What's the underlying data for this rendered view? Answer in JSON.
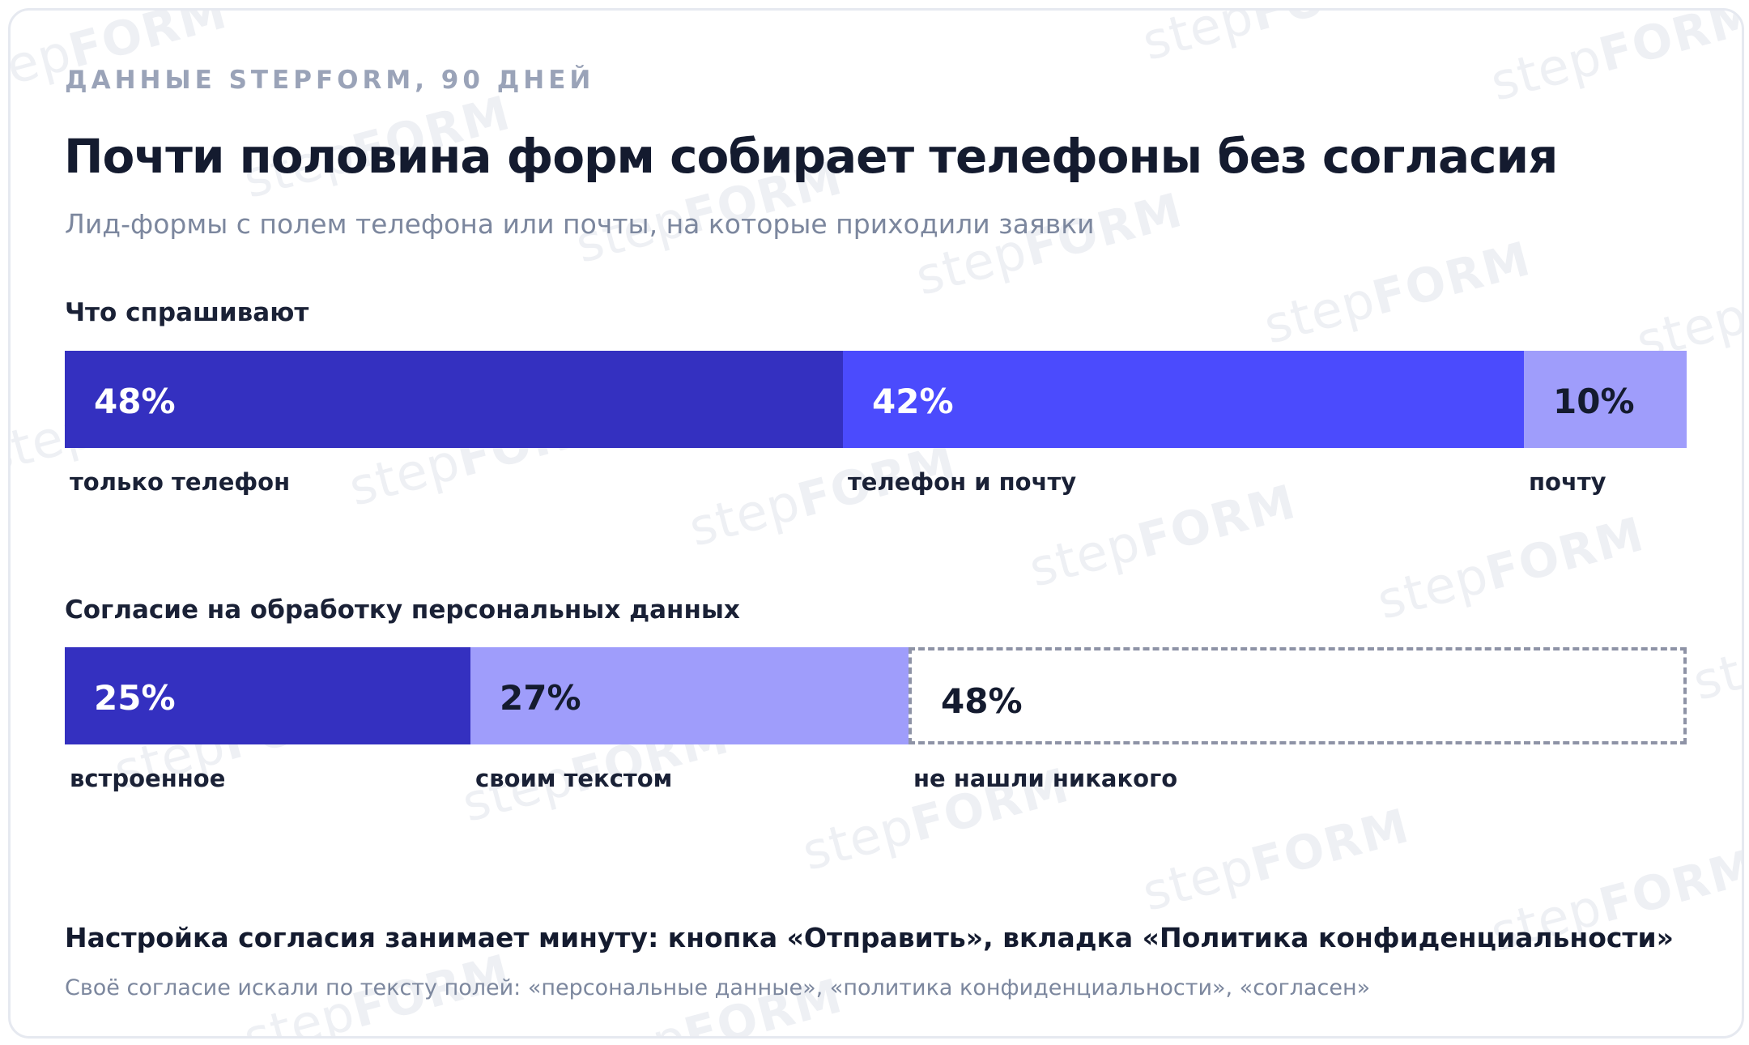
{
  "eyebrow": "ДАННЫЕ STEPFORM, 90 ДНЕЙ",
  "title": "Почти половина форм собирает телефоны без согласия",
  "subtitle": "Лид-формы с полем телефона или почты, на которые приходили заявки",
  "watermark": {
    "light": "step",
    "bold": "FORM"
  },
  "colors": {
    "dark": "#3430c0",
    "medium": "#4b4bfd",
    "light": "#9f9dfb",
    "empty_border": "#8e93a6"
  },
  "chart_data": [
    {
      "type": "bar",
      "subtype": "stacked-100",
      "title": "Что спрашивают",
      "unit": "%",
      "segments": [
        {
          "label": "только телефон",
          "value": 48,
          "display": "48%",
          "color": "#3430c0",
          "text_color": "#ffffff",
          "style": "solid"
        },
        {
          "label": "телефон и почту",
          "value": 42,
          "display": "42%",
          "color": "#4b4bfd",
          "text_color": "#ffffff",
          "style": "solid"
        },
        {
          "label": "почту",
          "value": 10,
          "display": "10%",
          "color": "#9f9dfb",
          "text_color": "#141b2f",
          "style": "solid"
        }
      ]
    },
    {
      "type": "bar",
      "subtype": "stacked-100",
      "title": "Согласие на обработку персональных данных",
      "unit": "%",
      "segments": [
        {
          "label": "встроенное",
          "value": 25,
          "display": "25%",
          "color": "#3430c0",
          "text_color": "#ffffff",
          "style": "solid"
        },
        {
          "label": "своим текстом",
          "value": 27,
          "display": "27%",
          "color": "#9f9dfb",
          "text_color": "#141b2f",
          "style": "solid"
        },
        {
          "label": "не нашли никакого",
          "value": 48,
          "display": "48%",
          "color": "#ffffff",
          "text_color": "#141b2f",
          "style": "dashed"
        }
      ]
    }
  ],
  "footer": {
    "title": "Настройка согласия занимает минуту: кнопка «Отправить», вкладка «Политика конфиденциальности»",
    "note": "Своё согласие искали по тексту полей: «персональные данные», «политика конфиденциальности», «согласен»"
  }
}
